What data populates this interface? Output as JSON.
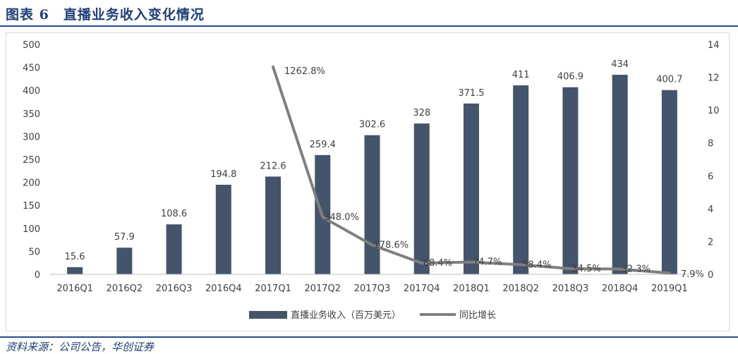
{
  "header": {
    "title": "图表 6　直播业务收入变化情况"
  },
  "footer": {
    "source": "资料来源：公司公告，华创证券"
  },
  "colors": {
    "bar": "#44546a",
    "line": "#7f7f7f",
    "accent": "#2b4c8c"
  },
  "chart_data": {
    "type": "bar",
    "categories": [
      "2016Q1",
      "2016Q2",
      "2016Q3",
      "2016Q4",
      "2017Q1",
      "2017Q2",
      "2017Q3",
      "2017Q4",
      "2018Q1",
      "2018Q2",
      "2018Q3",
      "2018Q4",
      "2019Q1"
    ],
    "series": [
      {
        "name": "直播业务收入（百万美元）",
        "type": "bar",
        "axis": "left",
        "values": [
          15.6,
          57.9,
          108.6,
          194.8,
          212.6,
          259.4,
          302.6,
          328,
          371.5,
          411,
          406.9,
          434,
          400.7
        ],
        "labels": [
          "15.6",
          "57.9",
          "108.6",
          "194.8",
          "212.6",
          "259.4",
          "302.6",
          "328",
          "371.5",
          "411",
          "406.9",
          "434",
          "400.7"
        ]
      },
      {
        "name": "同比增长",
        "type": "line",
        "axis": "right",
        "values": [
          null,
          null,
          null,
          null,
          12.628,
          3.48,
          1.786,
          0.684,
          0.747,
          0.584,
          0.345,
          0.323,
          0.079
        ],
        "labels": [
          "",
          "",
          "",
          "",
          "1262.8%",
          "348.0%",
          "178.6%",
          "68.4%",
          "74.7%",
          "58.4%",
          "34.5%",
          "32.3%",
          "7.9%"
        ]
      }
    ],
    "y_left": {
      "ticks": [
        "0",
        "50",
        "100",
        "150",
        "200",
        "250",
        "300",
        "350",
        "400",
        "450",
        "500"
      ],
      "ylim": [
        0,
        500
      ]
    },
    "y_right": {
      "ticks": [
        "0",
        "2",
        "4",
        "6",
        "8",
        "10",
        "12",
        "14"
      ],
      "ylim": [
        0,
        14
      ]
    },
    "grid": false,
    "legend_position": "bottom",
    "legend": [
      {
        "label": "直播业务收入（百万美元）",
        "kind": "bar"
      },
      {
        "label": "同比增长",
        "kind": "line"
      }
    ]
  }
}
